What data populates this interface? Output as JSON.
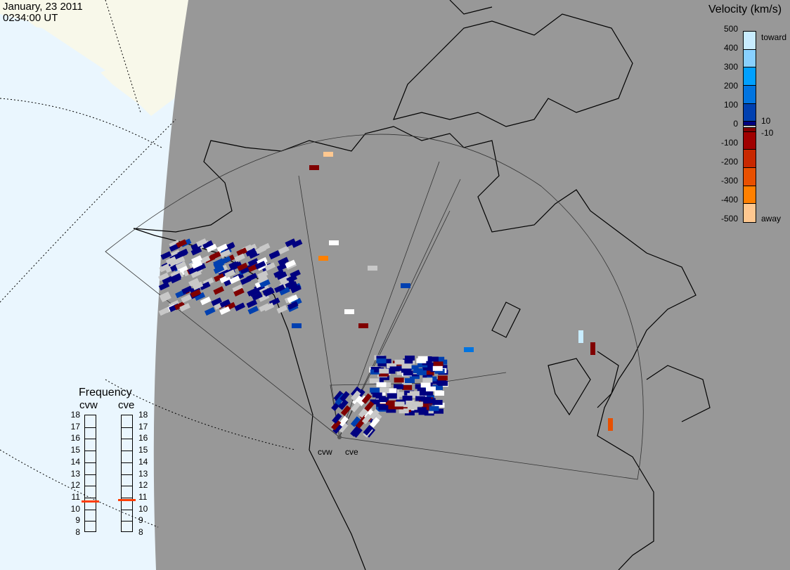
{
  "header": {
    "date": "January, 23 2011",
    "time": "0234:00 UT"
  },
  "colorbar": {
    "title": "Velocity (km/s)",
    "ticks": [
      "500",
      "400",
      "300",
      "200",
      "100",
      "0",
      "-100",
      "-200",
      "-300",
      "-400",
      "-500"
    ],
    "inner_labels": {
      "plus": "10",
      "minus": "-10"
    },
    "end_labels": {
      "top": "toward",
      "bottom": "away"
    },
    "colors": [
      "#c8ecff",
      "#88d0ff",
      "#00a0ff",
      "#0074e0",
      "#0040b0",
      "#000080",
      "#c8c8c8",
      "#800000",
      "#a00000",
      "#c82800",
      "#e85000",
      "#ff8000",
      "#ffc890"
    ]
  },
  "frequency": {
    "title": "Frequency",
    "ticks": [
      "18",
      "17",
      "16",
      "15",
      "14",
      "13",
      "12",
      "11",
      "10",
      "9",
      "8"
    ],
    "unit_range": [
      8,
      18
    ],
    "radars": [
      {
        "name": "cvw",
        "value_mhz": 10.6
      },
      {
        "name": "cve",
        "value_mhz": 10.7
      }
    ],
    "marker_color": "#ff3c00"
  },
  "map": {
    "radar_labels": [
      "cvw",
      "cve"
    ],
    "background_colors": {
      "ocean": "#eaf6fe",
      "land_outside": "#f8f8ea",
      "night_disk": "#989898"
    }
  }
}
